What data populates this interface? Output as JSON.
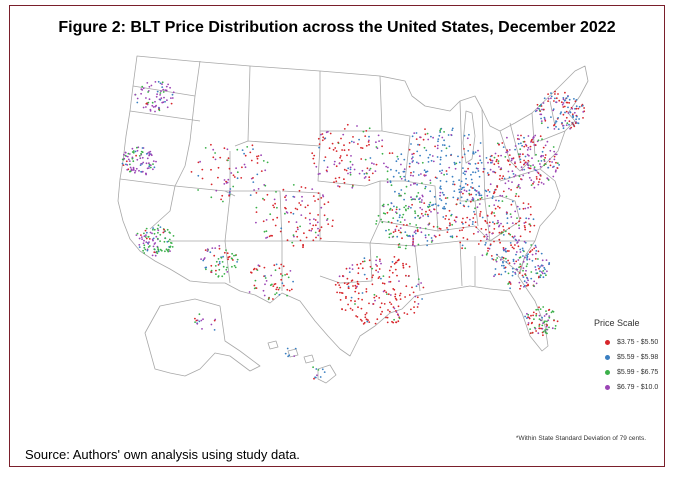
{
  "figure": {
    "title": "Figure 2: BLT Price Distribution across the United States, December 2022",
    "source": "Source: Authors' own analysis using study data.",
    "note": "*Within State Standard Deviation of 79 cents."
  },
  "legend": {
    "title": "Price Scale",
    "placement": "bottom-right",
    "items": [
      {
        "label": "$3.75 - $5.50",
        "color": "#d7262b"
      },
      {
        "label": "$5.59 - $5.98",
        "color": "#3a7fc1"
      },
      {
        "label": "$5.99 - $6.75",
        "color": "#3bb04a"
      },
      {
        "label": "$6.79 - $10.0",
        "color": "#9b45b5"
      }
    ]
  },
  "map": {
    "region": "United States",
    "boundary_color": "#a8a8a8",
    "land_color": "#ffffff"
  }
}
